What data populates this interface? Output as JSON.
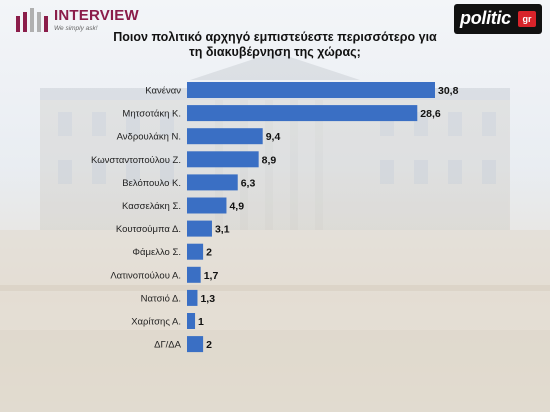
{
  "header": {
    "logo_word": "INTERVIEW",
    "logo_tagline": "We simply ask!",
    "brand_word": "politic",
    "brand_badge": "gr"
  },
  "colors": {
    "bar": "#3a6fc4",
    "logo": "#8b1d4a"
  },
  "chart_data": {
    "type": "bar",
    "orientation": "horizontal",
    "title": "Ποιον πολιτικό αρχηγό εμπιστεύεστε περισσότερο για τη διακυβέρνηση της χώρας;",
    "categories": [
      "Κανέναν",
      "Μητσοτάκη Κ.",
      "Ανδρουλάκη Ν.",
      "Κωνσταντοπούλου Ζ.",
      "Βελόπουλο Κ.",
      "Κασσελάκη Σ.",
      "Κουτσούμπα Δ.",
      "Φάμελλο Σ.",
      "Λατινοπούλου Α.",
      "Νατσιό Δ.",
      "Χαρίτσης Α.",
      "ΔΓ/ΔΑ"
    ],
    "values": [
      30.8,
      28.6,
      9.4,
      8.9,
      6.3,
      4.9,
      3.1,
      2,
      1.7,
      1.3,
      1,
      2
    ],
    "value_labels": [
      "30,8",
      "28,6",
      "9,4",
      "8,9",
      "6,3",
      "4,9",
      "3,1",
      "2",
      "1,7",
      "1,3",
      "1",
      "2"
    ],
    "xlim": [
      0,
      30.8
    ],
    "grid": false,
    "legend": "none"
  }
}
